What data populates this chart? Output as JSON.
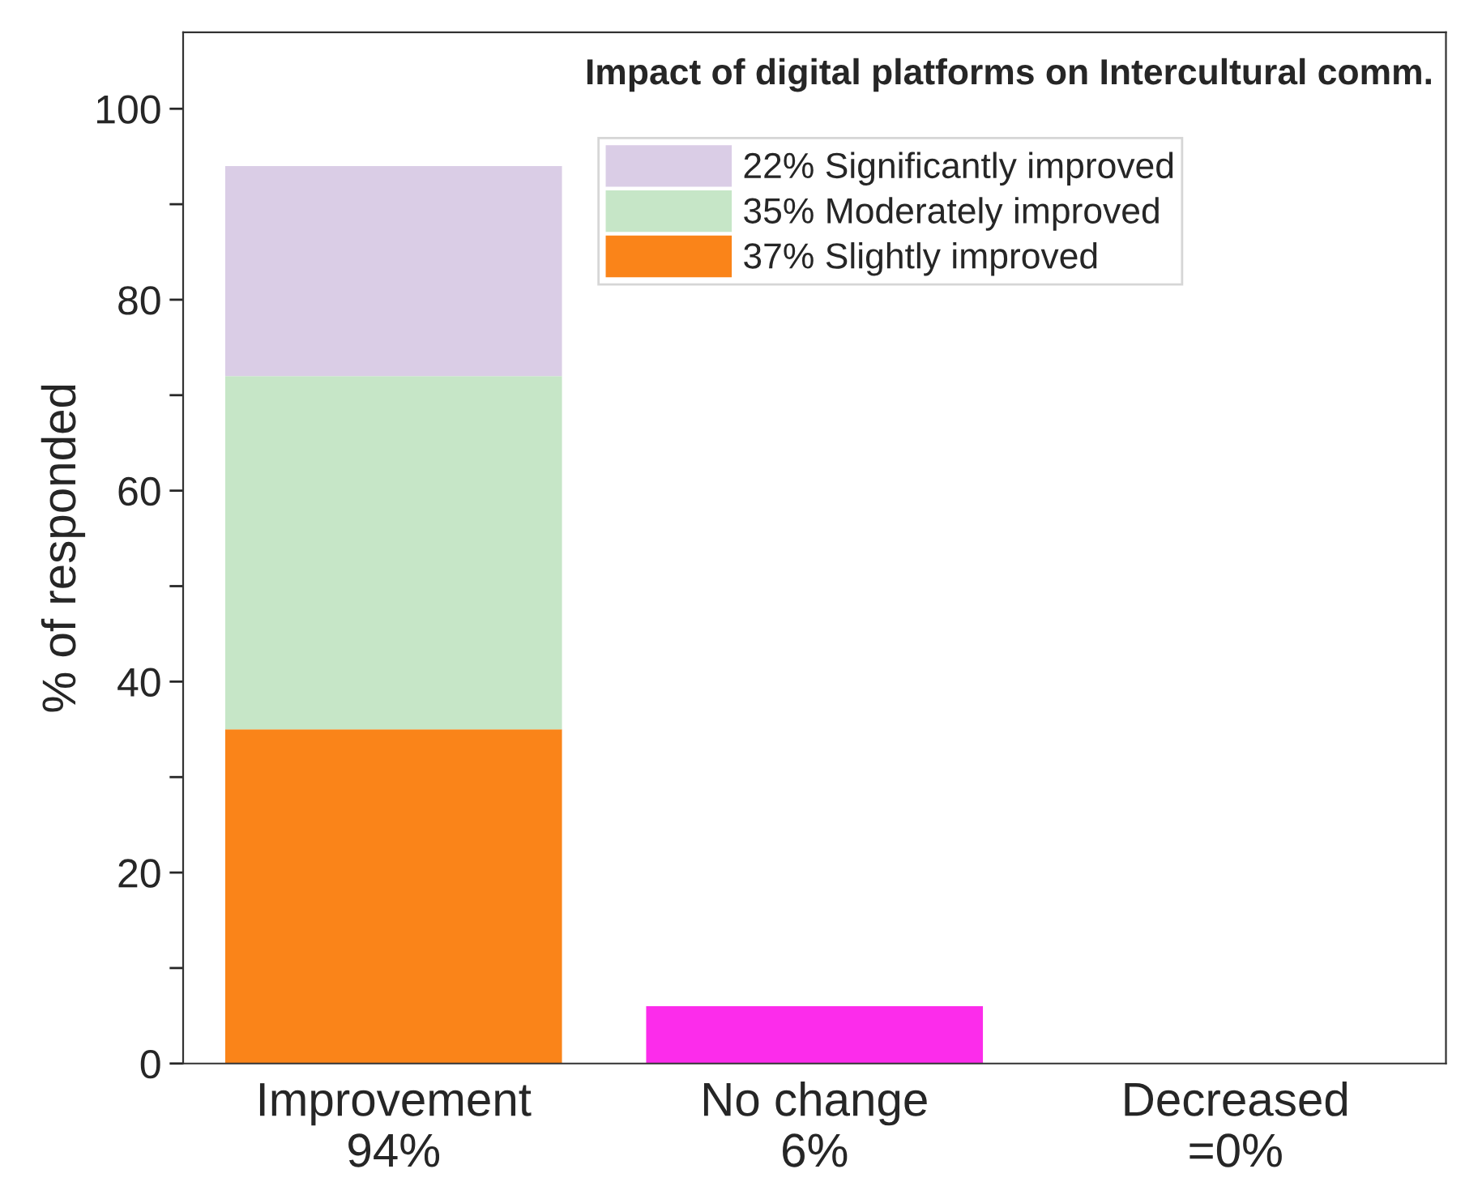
{
  "chart_data": {
    "type": "bar",
    "title": "Impact of digital platforms on Intercultural comm.",
    "ylabel": "% of responded",
    "categories": [
      "Improvement\n94%",
      "No change\n6%",
      "Decreased\n=0%"
    ],
    "stacked": true,
    "series": [
      {
        "name": "37% Slightly improved",
        "color": "#fa8419",
        "colors": [
          "#fa8419",
          "#fc2ceb",
          "#fc2ceb"
        ],
        "values": [
          35,
          6,
          0
        ]
      },
      {
        "name": "35% Moderately improved",
        "color": "#c6e6c7",
        "values": [
          37,
          null,
          null
        ]
      },
      {
        "name": "22% Significantly improved",
        "color": "#dacde6",
        "values": [
          22,
          null,
          null
        ]
      }
    ],
    "ylim": [
      0,
      108
    ],
    "yticks": [
      0,
      {
        "value": 10,
        "label": null
      },
      20,
      {
        "value": 30,
        "label": null
      },
      40,
      {
        "value": 50,
        "label": null
      },
      60,
      {
        "value": 70,
        "label": null
      },
      80,
      {
        "value": 90,
        "label": null
      },
      100
    ],
    "grid": false,
    "legend": "top"
  }
}
